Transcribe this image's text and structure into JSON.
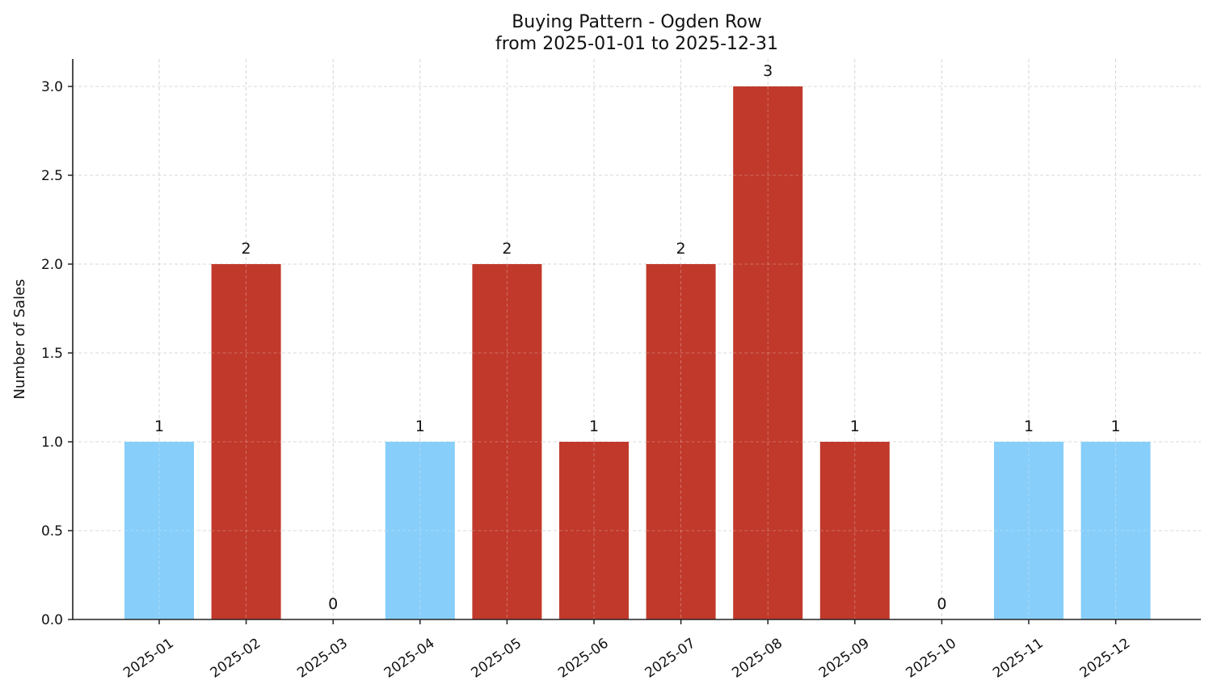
{
  "chart_data": {
    "type": "bar",
    "title": "Buying Pattern - Ogden Row",
    "subtitle": "from 2025-01-01 to 2025-12-31",
    "xlabel": "",
    "ylabel": "Number of Sales",
    "categories": [
      "2025-01",
      "2025-02",
      "2025-03",
      "2025-04",
      "2025-05",
      "2025-06",
      "2025-07",
      "2025-08",
      "2025-09",
      "2025-10",
      "2025-11",
      "2025-12"
    ],
    "values": [
      1,
      2,
      0,
      1,
      2,
      1,
      2,
      3,
      1,
      0,
      1,
      1
    ],
    "data_labels": [
      "1",
      "2",
      "0",
      "1",
      "2",
      "1",
      "2",
      "3",
      "1",
      "0",
      "1",
      "1"
    ],
    "bar_colors": [
      "#87CEFA",
      "#C0392B",
      "#87CEFA",
      "#87CEFA",
      "#C0392B",
      "#C0392B",
      "#C0392B",
      "#C0392B",
      "#C0392B",
      "#87CEFA",
      "#87CEFA",
      "#87CEFA"
    ],
    "ylim": [
      0,
      3.15
    ],
    "yticks": [
      0.0,
      0.5,
      1.0,
      1.5,
      2.0,
      2.5,
      3.0
    ],
    "ytick_labels": [
      "0.0",
      "0.5",
      "1.0",
      "1.5",
      "2.0",
      "2.5",
      "3.0"
    ],
    "grid": true,
    "legend": null,
    "xtick_rotation": 35
  },
  "colors": {
    "low": "#87CEFA",
    "high": "#C0392B",
    "axis": "#222222",
    "grid": "#cccccc",
    "text": "#111111"
  }
}
